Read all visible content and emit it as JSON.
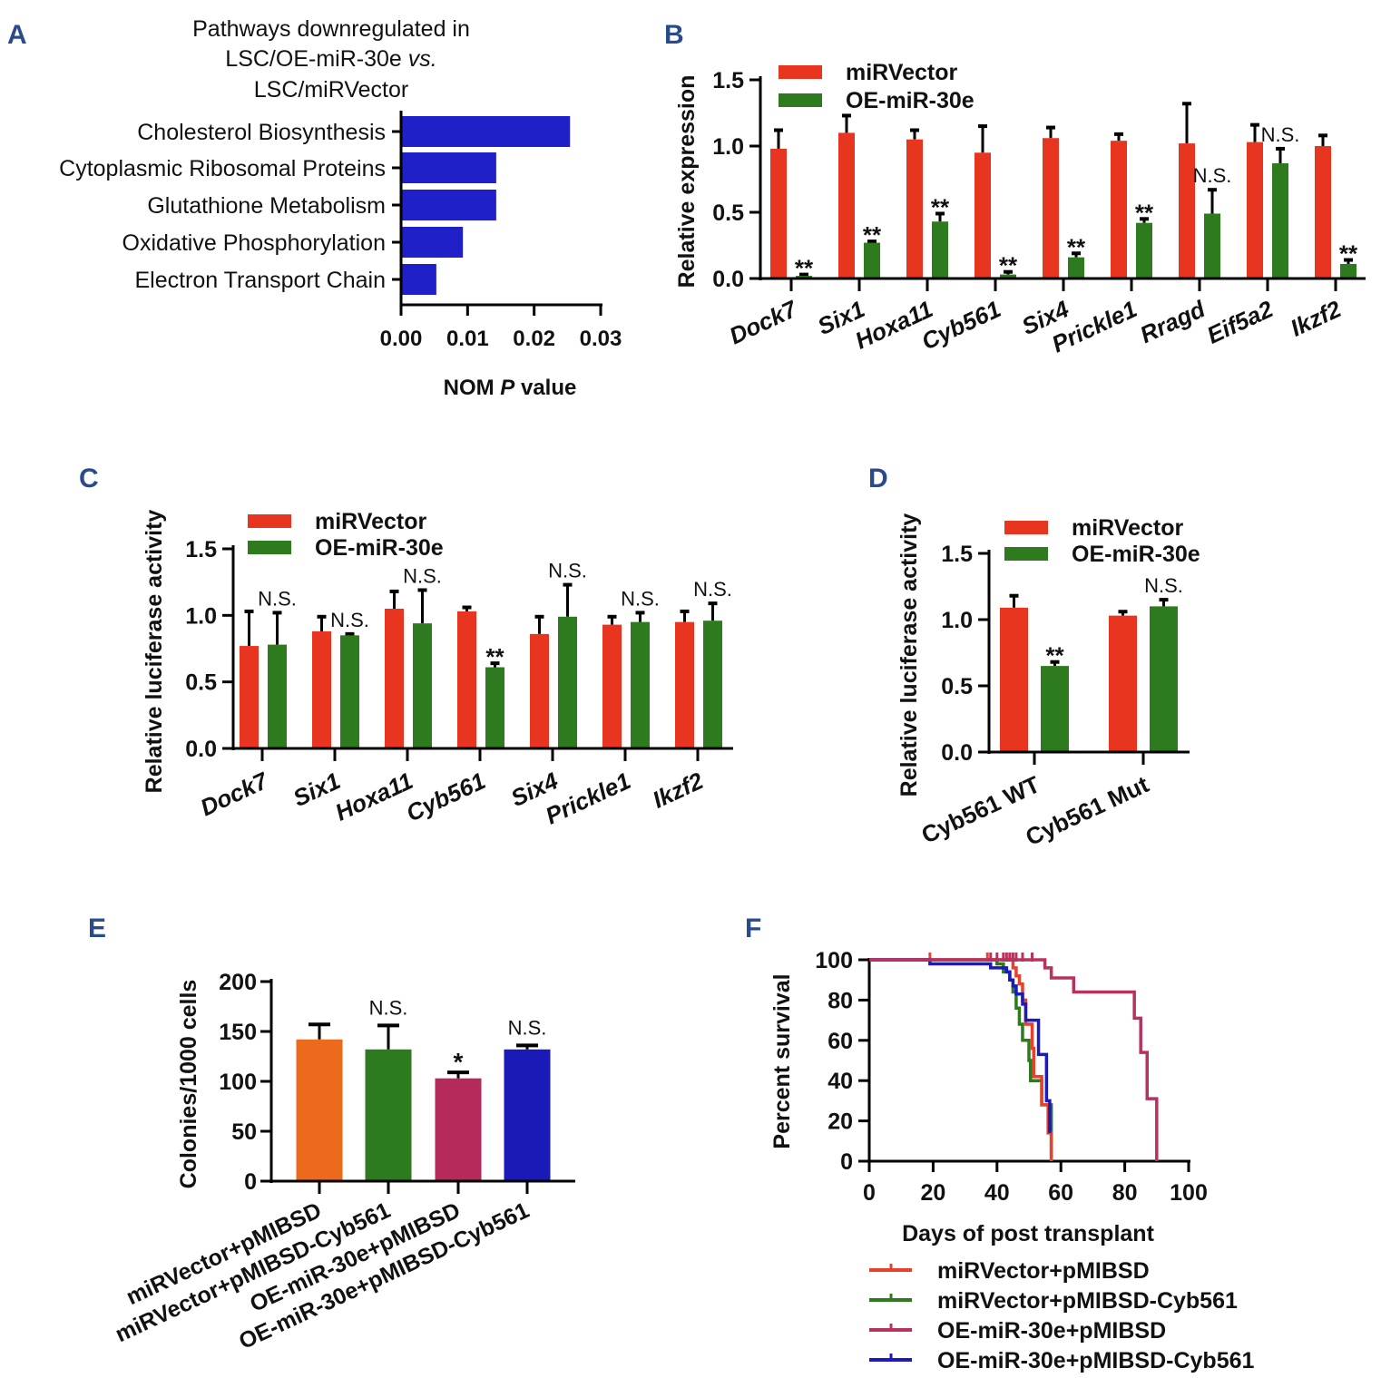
{
  "panel_letters": [
    "A",
    "B",
    "C",
    "D",
    "E",
    "F"
  ],
  "colors": {
    "letter": "#2a4a8a",
    "red": "#e8351f",
    "green": "#2d7a1f",
    "blueA": "#2020c8",
    "orange": "#ec6a1c",
    "magenta": "#b52a5b",
    "blue": "#1a1ab8"
  },
  "chart_data": [
    {
      "panel": "A",
      "type": "bar",
      "orientation": "horizontal",
      "title_lines": [
        "Pathways downregulated in",
        "LSC/OE-miR-30e ",
        "vs.",
        "LSC/miRVector"
      ],
      "categories": [
        "Cholesterol Biosynthesis",
        "Cytoplasmic Ribosomal Proteins",
        "Glutathione Metabolism",
        "Oxidative Phosphorylation",
        "Electron Transport Chain"
      ],
      "values": [
        0.0254,
        0.0143,
        0.0143,
        0.0093,
        0.0053
      ],
      "xlabel_parts": [
        "NOM ",
        "P",
        " value"
      ],
      "xlim": [
        0,
        0.03
      ],
      "xticks": [
        "0.00",
        "0.01",
        "0.02",
        "0.03"
      ],
      "bar_color": "#2020c8"
    },
    {
      "panel": "B",
      "type": "bar",
      "ylabel": "Relative expression",
      "ylim": [
        0,
        1.5
      ],
      "yticks": [
        "0.0",
        "0.5",
        "1.0",
        "1.5"
      ],
      "categories": [
        "Dock7",
        "Six1",
        "Hoxa11",
        "Cyb561",
        "Six4",
        "Prickle1",
        "Rragd",
        "Eif5a2",
        "Ikzf2"
      ],
      "series": [
        {
          "name": "miRVector",
          "color": "#e8351f",
          "values": [
            0.98,
            1.1,
            1.05,
            0.95,
            1.06,
            1.04,
            1.02,
            1.03,
            1.0
          ],
          "error_top": [
            1.12,
            1.23,
            1.12,
            1.15,
            1.14,
            1.09,
            1.32,
            1.16,
            1.08
          ]
        },
        {
          "name": "OE-miR-30e",
          "color": "#2d7a1f",
          "values": [
            0.02,
            0.27,
            0.43,
            0.03,
            0.16,
            0.42,
            0.49,
            0.87,
            0.11
          ],
          "error_top": [
            0.03,
            0.28,
            0.49,
            0.05,
            0.19,
            0.45,
            0.67,
            0.98,
            0.14
          ]
        }
      ],
      "significance": [
        "**",
        "**",
        "**",
        "**",
        "**",
        "**",
        "N.S.",
        "N.S.",
        "**"
      ]
    },
    {
      "panel": "C",
      "type": "bar",
      "ylabel": "Relative luciferase activity",
      "ylim": [
        0,
        1.5
      ],
      "yticks": [
        "0.0",
        "0.5",
        "1.0",
        "1.5"
      ],
      "categories": [
        "Dock7",
        "Six1",
        "Hoxa11",
        "Cyb561",
        "Six4",
        "Prickle1",
        "Ikzf2"
      ],
      "series": [
        {
          "name": "miRVector",
          "color": "#e8351f",
          "values": [
            0.77,
            0.88,
            1.05,
            1.03,
            0.86,
            0.93,
            0.95
          ],
          "error_top": [
            1.03,
            0.99,
            1.18,
            1.06,
            0.99,
            0.99,
            1.03
          ]
        },
        {
          "name": "OE-miR-30e",
          "color": "#2d7a1f",
          "values": [
            0.78,
            0.85,
            0.94,
            0.61,
            0.99,
            0.95,
            0.96
          ],
          "error_top": [
            1.02,
            0.86,
            1.19,
            0.64,
            1.23,
            1.02,
            1.09
          ]
        }
      ],
      "significance": [
        "N.S.",
        "N.S.",
        "N.S.",
        "**",
        "N.S.",
        "N.S.",
        "N.S."
      ]
    },
    {
      "panel": "D",
      "type": "bar",
      "ylabel": "Relative luciferase activity",
      "ylim": [
        0,
        1.5
      ],
      "yticks": [
        "0.0",
        "0.5",
        "1.0",
        "1.5"
      ],
      "categories": [
        "Cyb561 WT",
        "Cyb561 Mut"
      ],
      "series": [
        {
          "name": "miRVector",
          "color": "#e8351f",
          "values": [
            1.09,
            1.03
          ],
          "error_top": [
            1.18,
            1.06
          ]
        },
        {
          "name": "OE-miR-30e",
          "color": "#2d7a1f",
          "values": [
            0.65,
            1.1
          ],
          "error_top": [
            0.68,
            1.15
          ]
        }
      ],
      "significance": [
        "**",
        "N.S."
      ]
    },
    {
      "panel": "E",
      "type": "bar",
      "ylabel": "Colonies/1000 cells",
      "ylim": [
        0,
        200
      ],
      "yticks": [
        "0",
        "50",
        "100",
        "150",
        "200"
      ],
      "categories": [
        "miRVector+pMIBSD",
        "miRVector+pMIBSD-Cyb561",
        "OE-miR-30e+pMIBSD",
        "OE-miR-30e+pMIBSD-Cyb561"
      ],
      "values": [
        142,
        132,
        103,
        132
      ],
      "error_top": [
        157,
        156,
        109,
        136
      ],
      "bar_colors": [
        "#ec6a1c",
        "#2d7a1f",
        "#b52a5b",
        "#1a1ab8"
      ],
      "significance": [
        "",
        "N.S.",
        "*",
        "N.S."
      ]
    },
    {
      "panel": "F",
      "type": "line",
      "subtype": "kaplan-meier",
      "ylabel": "Percent survival",
      "xlabel": "Days of post transplant",
      "xlim": [
        0,
        100
      ],
      "ylim": [
        0,
        100
      ],
      "xticks": [
        "0",
        "20",
        "40",
        "60",
        "80",
        "100"
      ],
      "yticks": [
        "0",
        "20",
        "40",
        "60",
        "80",
        "100"
      ],
      "legend_position": "bottom",
      "series": [
        {
          "name": "miRVector+pMIBSD",
          "color": "#e8402a",
          "steps": [
            [
              0,
              100
            ],
            [
              45,
              96
            ],
            [
              46,
              92
            ],
            [
              47,
              88
            ],
            [
              48,
              80
            ],
            [
              49,
              68
            ],
            [
              51,
              56
            ],
            [
              51.5,
              42
            ],
            [
              54,
              28
            ],
            [
              56,
              14
            ],
            [
              57,
              0
            ]
          ],
          "censored": [
            19,
            37,
            44
          ]
        },
        {
          "name": "miRVector+pMIBSD-Cyb561",
          "color": "#2d7a1f",
          "steps": [
            [
              0,
              100
            ],
            [
              40,
              98
            ],
            [
              42,
              94
            ],
            [
              44,
              90
            ],
            [
              45,
              84
            ],
            [
              46,
              76
            ],
            [
              47,
              68
            ],
            [
              48,
              60
            ],
            [
              50,
              50
            ],
            [
              50.5,
              40
            ],
            [
              54,
              28
            ],
            [
              57,
              0
            ]
          ],
          "censored": []
        },
        {
          "name": "OE-miR-30e+pMIBSD",
          "color": "#b8325f",
          "steps": [
            [
              0,
              100
            ],
            [
              55,
              96
            ],
            [
              57,
              91
            ],
            [
              64,
              84
            ],
            [
              83,
              71
            ],
            [
              85,
              54
            ],
            [
              87,
              31
            ],
            [
              90,
              0
            ]
          ],
          "censored": [
            38,
            40,
            42,
            43,
            44,
            45,
            46,
            48,
            51
          ]
        },
        {
          "name": "OE-miR-30e+pMIBSD-Cyb561",
          "color": "#1a1abf",
          "steps": [
            [
              0,
              100
            ],
            [
              19,
              98
            ],
            [
              38,
              96
            ],
            [
              43,
              94
            ],
            [
              44,
              90
            ],
            [
              45,
              87
            ],
            [
              46,
              83
            ],
            [
              48,
              78
            ],
            [
              49,
              70
            ],
            [
              53,
              53
            ],
            [
              55.5,
              30
            ],
            [
              56.5,
              14
            ]
          ],
          "censored": []
        }
      ]
    }
  ]
}
